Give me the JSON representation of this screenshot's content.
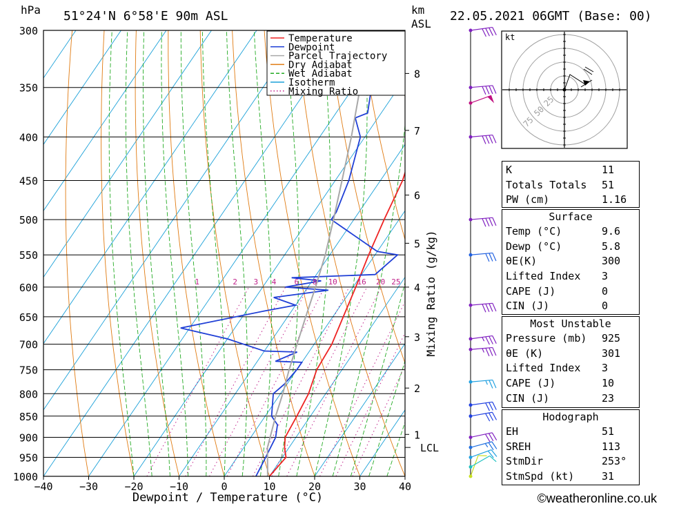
{
  "header": {
    "location": "51°24'N  6°58'E  90m  ASL",
    "pressure_unit": "hPa",
    "height_unit_line1": "km",
    "height_unit_line2": "ASL",
    "datetime": "22.05.2021  06GMT  (Base: 00)"
  },
  "legend": {
    "items": [
      {
        "label": "Temperature",
        "color": "#ee2222",
        "style": "solid"
      },
      {
        "label": "Dewpoint",
        "color": "#1f3fd6",
        "style": "solid"
      },
      {
        "label": "Parcel Trajectory",
        "color": "#a8a8a8",
        "style": "solid"
      },
      {
        "label": "Dry Adiabat",
        "color": "#e07a10",
        "style": "solid"
      },
      {
        "label": "Wet Adiabat",
        "color": "#22aa22",
        "style": "dashed"
      },
      {
        "label": "Isotherm",
        "color": "#1aa0d8",
        "style": "solid"
      },
      {
        "label": "Mixing Ratio",
        "color": "#c0208a",
        "style": "dotted"
      }
    ]
  },
  "chart_data": {
    "type": "line",
    "xlabel": "Dewpoint / Temperature (°C)",
    "ylabel": "hPa",
    "y2label": "Mixing Ratio (g/kg)",
    "x_ticks": [
      "−40",
      "−30",
      "−20",
      "−10",
      "0",
      "10",
      "20",
      "30",
      "40"
    ],
    "x_tick_values": [
      -40,
      -30,
      -20,
      -10,
      0,
      10,
      20,
      30,
      40
    ],
    "y_ticks": [
      300,
      350,
      400,
      450,
      500,
      550,
      600,
      650,
      700,
      750,
      800,
      850,
      900,
      950,
      1000
    ],
    "ylim": [
      1000,
      300
    ],
    "y_scale": "log",
    "height_ticks_km": [
      {
        "km": "1",
        "p": 893
      },
      {
        "km": "2",
        "p": 788
      },
      {
        "km": "3",
        "p": 686
      },
      {
        "km": "4",
        "p": 600
      },
      {
        "km": "5",
        "p": 533
      },
      {
        "km": "6",
        "p": 468
      },
      {
        "km": "7",
        "p": 393
      },
      {
        "km": "8",
        "p": 337
      }
    ],
    "lcl": {
      "label": "LCL",
      "p": 925
    },
    "mixing_ratio_labels": [
      {
        "label": "1",
        "x": -6.0
      },
      {
        "label": "2",
        "x": 2.4
      },
      {
        "label": "3",
        "x": 7.0
      },
      {
        "label": "4",
        "x": 11.0
      },
      {
        "label": "6",
        "x": 16.0
      },
      {
        "label": "8",
        "x": 20.0
      },
      {
        "label": "10",
        "x": 24.0
      },
      {
        "label": "16",
        "x": 30.4
      },
      {
        "label": "20",
        "x": 34.6
      },
      {
        "label": "25",
        "x": 38.0
      }
    ],
    "series": [
      {
        "name": "Temperature",
        "color": "#ee2222",
        "points": [
          {
            "p": 1000,
            "x": 10.0
          },
          {
            "p": 950,
            "x": 10.8
          },
          {
            "p": 925,
            "x": 9.0
          },
          {
            "p": 900,
            "x": 7.6
          },
          {
            "p": 850,
            "x": 7.0
          },
          {
            "p": 800,
            "x": 6.2
          },
          {
            "p": 750,
            "x": 4.4
          },
          {
            "p": 700,
            "x": 3.9
          },
          {
            "p": 650,
            "x": 2.3
          },
          {
            "p": 600,
            "x": 0.6
          },
          {
            "p": 550,
            "x": -1.4
          },
          {
            "p": 500,
            "x": -3.3
          },
          {
            "p": 450,
            "x": -5.1
          },
          {
            "p": 400,
            "x": -8.6
          },
          {
            "p": 350,
            "x": -9.5
          },
          {
            "p": 300,
            "x": -8.3
          }
        ]
      },
      {
        "name": "Dewpoint",
        "color": "#1f3fd6",
        "points": [
          {
            "p": 1000,
            "x": 7.0
          },
          {
            "p": 950,
            "x": 6.3
          },
          {
            "p": 900,
            "x": 5.5
          },
          {
            "p": 870,
            "x": 4.0
          },
          {
            "p": 850,
            "x": 1.4
          },
          {
            "p": 800,
            "x": -1.6
          },
          {
            "p": 780,
            "x": -0.6
          },
          {
            "p": 750,
            "x": 0.0
          },
          {
            "p": 735,
            "x": 0.0
          },
          {
            "p": 733,
            "x": -6.0
          },
          {
            "p": 715,
            "x": -2.6
          },
          {
            "p": 713,
            "x": -10.0
          },
          {
            "p": 690,
            "x": -20.0
          },
          {
            "p": 670,
            "x": -32.0
          },
          {
            "p": 640,
            "x": -16.0
          },
          {
            "p": 630,
            "x": -10.0
          },
          {
            "p": 617,
            "x": -16.0
          },
          {
            "p": 605,
            "x": -5.0
          },
          {
            "p": 600,
            "x": -15.0
          },
          {
            "p": 590,
            "x": -8.0
          },
          {
            "p": 585,
            "x": -15.0
          },
          {
            "p": 580,
            "x": 3.0
          },
          {
            "p": 550,
            "x": 5.0
          },
          {
            "p": 545,
            "x": 0.0
          },
          {
            "p": 500,
            "x": -15.0
          },
          {
            "p": 490,
            "x": -15.0
          },
          {
            "p": 450,
            "x": -17.0
          },
          {
            "p": 400,
            "x": -21.0
          },
          {
            "p": 380,
            "x": -25.0
          },
          {
            "p": 375,
            "x": -23.0
          },
          {
            "p": 350,
            "x": -26.0
          },
          {
            "p": 320,
            "x": -30.0
          },
          {
            "p": 300,
            "x": -33.0
          }
        ]
      },
      {
        "name": "Parcel Trajectory",
        "color": "#a8a8a8",
        "points": [
          {
            "p": 1000,
            "x": 9.6
          },
          {
            "p": 925,
            "x": 5.2
          },
          {
            "p": 850,
            "x": 2.3
          },
          {
            "p": 800,
            "x": 0.5
          },
          {
            "p": 750,
            "x": -1.7
          },
          {
            "p": 700,
            "x": -3.8
          },
          {
            "p": 650,
            "x": -6.0
          },
          {
            "p": 600,
            "x": -8.3
          },
          {
            "p": 550,
            "x": -11.0
          },
          {
            "p": 500,
            "x": -14.5
          },
          {
            "p": 450,
            "x": -18.5
          },
          {
            "p": 400,
            "x": -23.0
          },
          {
            "p": 350,
            "x": -28.5
          },
          {
            "p": 320,
            "x": -33.0
          }
        ]
      }
    ],
    "wind_barbs": [
      {
        "p": 1000,
        "dir": 200,
        "speed": 10,
        "color": "#c8e020"
      },
      {
        "p": 975,
        "dir": 240,
        "speed": 10,
        "color": "#20c0c0"
      },
      {
        "p": 950,
        "dir": 250,
        "speed": 20,
        "color": "#20a0e0"
      },
      {
        "p": 925,
        "dir": 255,
        "speed": 25,
        "color": "#2070e0"
      },
      {
        "p": 900,
        "dir": 258,
        "speed": 30,
        "color": "#8020c0"
      },
      {
        "p": 850,
        "dir": 260,
        "speed": 30,
        "color": "#2040e0"
      },
      {
        "p": 825,
        "dir": 262,
        "speed": 30,
        "color": "#2040e0"
      },
      {
        "p": 775,
        "dir": 265,
        "speed": 25,
        "color": "#20a0e0"
      },
      {
        "p": 710,
        "dir": 265,
        "speed": 35,
        "color": "#8020c0"
      },
      {
        "p": 690,
        "dir": 262,
        "speed": 35,
        "color": "#8020c0"
      },
      {
        "p": 630,
        "dir": 265,
        "speed": 40,
        "color": "#8020c0"
      },
      {
        "p": 550,
        "dir": 265,
        "speed": 30,
        "color": "#2060e0"
      },
      {
        "p": 500,
        "dir": 265,
        "speed": 40,
        "color": "#8020c0"
      },
      {
        "p": 400,
        "dir": 265,
        "speed": 40,
        "color": "#8020c0"
      },
      {
        "p": 365,
        "dir": 250,
        "speed": 50,
        "color": "#c01080"
      },
      {
        "p": 350,
        "dir": 265,
        "speed": 40,
        "color": "#8020c0"
      },
      {
        "p": 300,
        "dir": 262,
        "speed": 40,
        "color": "#8020c0"
      }
    ]
  },
  "hodograph": {
    "unit": "kt",
    "rings": [
      "25",
      "50",
      "75"
    ],
    "colors": {
      "ring": "#a0a0a0",
      "axes": "#000000",
      "trace": "#000000"
    }
  },
  "indices": {
    "rows": [
      {
        "key": "K",
        "value": "11"
      },
      {
        "key": "Totals Totals",
        "value": "51"
      },
      {
        "key": "PW (cm)",
        "value": "1.16"
      }
    ]
  },
  "surface": {
    "title": "Surface",
    "rows": [
      {
        "key": "Temp (°C)",
        "value": "9.6"
      },
      {
        "key": "Dewp (°C)",
        "value": "5.8"
      },
      {
        "key": "θE(K)",
        "value": "300"
      },
      {
        "key": "Lifted Index",
        "value": "3"
      },
      {
        "key": "CAPE (J)",
        "value": "0"
      },
      {
        "key": "CIN (J)",
        "value": "0"
      }
    ]
  },
  "most_unstable": {
    "title": "Most Unstable",
    "rows": [
      {
        "key": "Pressure (mb)",
        "value": "925"
      },
      {
        "key": "θE (K)",
        "value": "301"
      },
      {
        "key": "Lifted Index",
        "value": "3"
      },
      {
        "key": "CAPE (J)",
        "value": "10"
      },
      {
        "key": "CIN (J)",
        "value": "23"
      }
    ]
  },
  "hodograph_table": {
    "title": "Hodograph",
    "rows": [
      {
        "key": "EH",
        "value": "51"
      },
      {
        "key": "SREH",
        "value": "113"
      },
      {
        "key": "StmDir",
        "value": "253°"
      },
      {
        "key": "StmSpd (kt)",
        "value": "31"
      }
    ]
  },
  "footer": {
    "copyright": "©weatheronline.co.uk"
  }
}
